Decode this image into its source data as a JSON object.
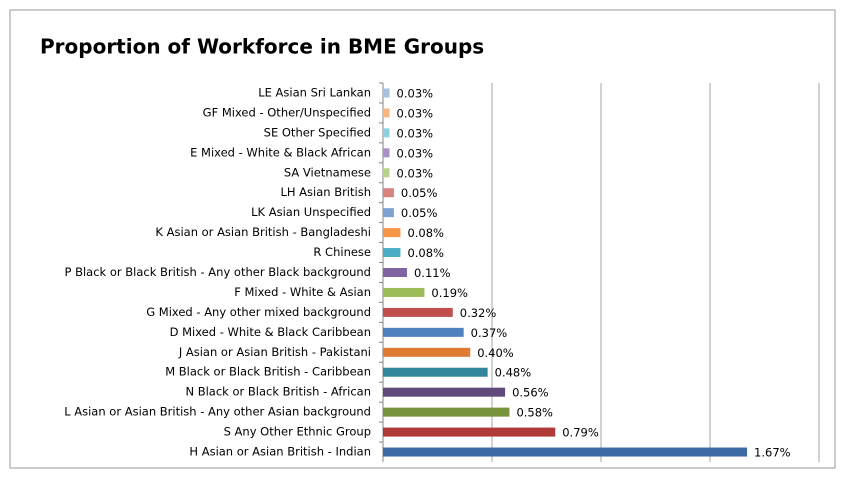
{
  "chart_data": {
    "type": "barh",
    "title": "Proportion of Workforce in BME Groups",
    "categories": [
      "LE Asian Sri Lankan",
      "GF Mixed - Other/Unspecified",
      "SE Other Specified",
      "E Mixed - White & Black African",
      "SA Vietnamese",
      "LH Asian British",
      "LK Asian Unspecified",
      "K Asian or Asian British - Bangladeshi",
      "R Chinese",
      "P Black or Black British - Any other Black background",
      "F Mixed - White & Asian",
      "G Mixed - Any other mixed background",
      "D Mixed - White & Black Caribbean",
      "J Asian or Asian British - Pakistani",
      "M Black or Black British - Caribbean",
      "N Black or Black British - African",
      "L Asian or Asian British - Any other Asian background",
      "S Any Other Ethnic Group",
      "H Asian or Asian British - Indian"
    ],
    "values": [
      0.03,
      0.03,
      0.03,
      0.03,
      0.03,
      0.05,
      0.05,
      0.08,
      0.08,
      0.11,
      0.19,
      0.32,
      0.37,
      0.4,
      0.48,
      0.56,
      0.58,
      0.79,
      1.67
    ],
    "value_labels": [
      "0.03%",
      "0.03%",
      "0.03%",
      "0.03%",
      "0.03%",
      "0.05%",
      "0.05%",
      "0.08%",
      "0.08%",
      "0.11%",
      "0.19%",
      "0.32%",
      "0.37%",
      "0.40%",
      "0.48%",
      "0.56%",
      "0.58%",
      "0.79%",
      "1.67%"
    ],
    "colors": [
      "#a9c0e0",
      "#f9b77f",
      "#8fd0e0",
      "#a794c4",
      "#b8d48a",
      "#d98280",
      "#7fa2d4",
      "#f79646",
      "#4bacc6",
      "#8064a2",
      "#9bbb59",
      "#c0504d",
      "#4f81bd",
      "#e07b33",
      "#31869b",
      "#60497a",
      "#77933c",
      "#b03a37",
      "#3d6aa5"
    ],
    "xlim": [
      0,
      2
    ],
    "xticks": [
      0,
      0.5,
      1,
      1.5,
      2
    ],
    "grid": true
  }
}
